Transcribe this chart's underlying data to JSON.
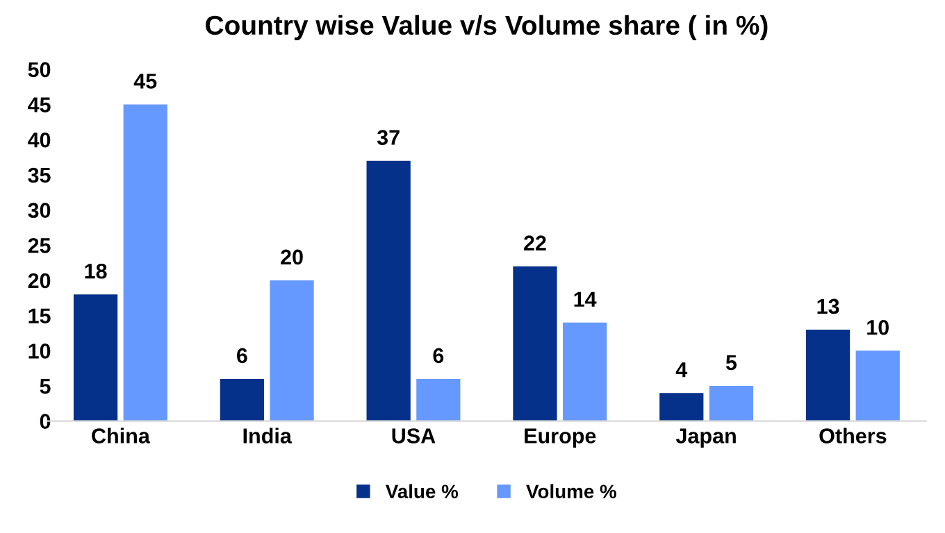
{
  "chart_data": {
    "type": "bar",
    "title": "Country wise Value v/s Volume share ( in %)",
    "categories": [
      "China",
      "India",
      "USA",
      "Europe",
      "Japan",
      "Others"
    ],
    "series": [
      {
        "name": "Value %",
        "color": "#06318a",
        "values": [
          18,
          6,
          37,
          22,
          4,
          13
        ]
      },
      {
        "name": "Volume %",
        "color": "#6699ff",
        "values": [
          45,
          20,
          6,
          14,
          5,
          10
        ]
      }
    ],
    "ylim": [
      0,
      50
    ],
    "yticks": [
      0,
      5,
      10,
      15,
      20,
      25,
      30,
      35,
      40,
      45,
      50
    ],
    "data_labels": true,
    "grid": false,
    "legend": "bottom"
  }
}
